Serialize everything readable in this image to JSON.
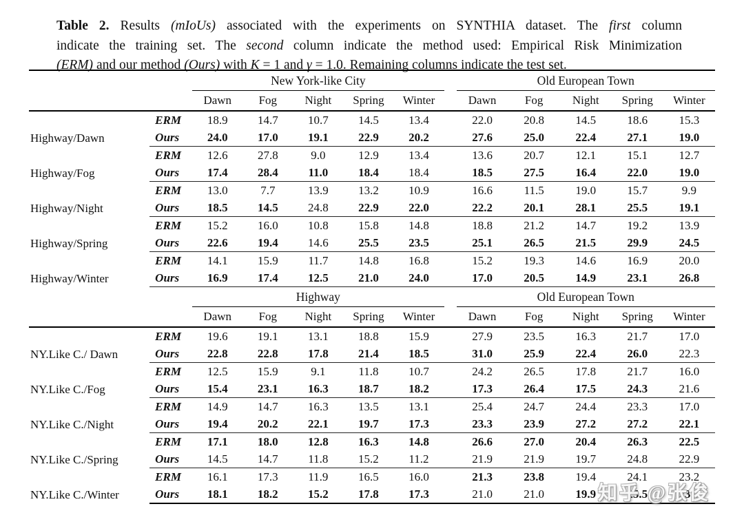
{
  "caption": {
    "lines": [
      [
        {
          "t": "Table 2.",
          "s": "b"
        },
        {
          "t": "  Results ",
          "s": ""
        },
        {
          "t": "(mIoUs)",
          "s": "i"
        },
        {
          "t": " associated with the experiments on SYNTHIA dataset.  The ",
          "s": ""
        },
        {
          "t": "first",
          "s": "i"
        },
        {
          "t": " column",
          "s": ""
        }
      ],
      [
        {
          "t": "indicate the training set. The ",
          "s": ""
        },
        {
          "t": "second",
          "s": "i"
        },
        {
          "t": " column indicate the method used: Empirical Risk Minimization",
          "s": ""
        }
      ],
      [
        {
          "t": "(ERM)",
          "s": "i"
        },
        {
          "t": " and our method ",
          "s": ""
        },
        {
          "t": "(Ours)",
          "s": "i"
        },
        {
          "t": " with ",
          "s": ""
        },
        {
          "t": "K",
          "s": "i"
        },
        {
          "t": " = 1 and ",
          "s": ""
        },
        {
          "t": "γ",
          "s": "i"
        },
        {
          "t": " = 1.0. Remaining columns indicate the test set.",
          "s": ""
        }
      ]
    ]
  },
  "method_labels": [
    "ERM",
    "Ours"
  ],
  "tables": [
    {
      "group_headers": [
        "New York-like City",
        "Old European Town"
      ],
      "columns": [
        "Dawn",
        "Fog",
        "Night",
        "Spring",
        "Winter"
      ],
      "rows": [
        {
          "label": "Highway/Dawn",
          "erm": {
            "v": [
              "18.9",
              "14.7",
              "10.7",
              "14.5",
              "13.4",
              "22.0",
              "20.8",
              "14.5",
              "18.6",
              "15.3"
            ],
            "b": [
              0,
              0,
              0,
              0,
              0,
              0,
              0,
              0,
              0,
              0
            ]
          },
          "ours": {
            "v": [
              "24.0",
              "17.0",
              "19.1",
              "22.9",
              "20.2",
              "27.6",
              "25.0",
              "22.4",
              "27.1",
              "19.0"
            ],
            "b": [
              1,
              1,
              1,
              1,
              1,
              1,
              1,
              1,
              1,
              1
            ]
          }
        },
        {
          "label": "Highway/Fog",
          "erm": {
            "v": [
              "12.6",
              "27.8",
              "9.0",
              "12.9",
              "13.4",
              "13.6",
              "20.7",
              "12.1",
              "15.1",
              "12.7"
            ],
            "b": [
              0,
              0,
              0,
              0,
              0,
              0,
              0,
              0,
              0,
              0
            ]
          },
          "ours": {
            "v": [
              "17.4",
              "28.4",
              "11.0",
              "18.4",
              "18.4",
              "18.5",
              "27.5",
              "16.4",
              "22.0",
              "19.0"
            ],
            "b": [
              1,
              1,
              1,
              1,
              0,
              1,
              1,
              1,
              1,
              1
            ]
          }
        },
        {
          "label": "Highway/Night",
          "erm": {
            "v": [
              "13.0",
              "7.7",
              "13.9",
              "13.2",
              "10.9",
              "16.6",
              "11.5",
              "19.0",
              "15.7",
              "9.9"
            ],
            "b": [
              0,
              0,
              0,
              0,
              0,
              0,
              0,
              0,
              0,
              0
            ]
          },
          "ours": {
            "v": [
              "18.5",
              "14.5",
              "24.8",
              "22.9",
              "22.0",
              "22.2",
              "20.1",
              "28.1",
              "25.5",
              "19.1"
            ],
            "b": [
              1,
              1,
              0,
              1,
              1,
              1,
              1,
              1,
              1,
              1
            ]
          }
        },
        {
          "label": "Highway/Spring",
          "erm": {
            "v": [
              "15.2",
              "16.0",
              "10.8",
              "15.8",
              "14.8",
              "18.8",
              "21.2",
              "14.7",
              "19.2",
              "13.9"
            ],
            "b": [
              0,
              0,
              0,
              0,
              0,
              0,
              0,
              0,
              0,
              0
            ]
          },
          "ours": {
            "v": [
              "22.6",
              "19.4",
              "14.6",
              "25.5",
              "23.5",
              "25.1",
              "26.5",
              "21.5",
              "29.9",
              "24.5"
            ],
            "b": [
              1,
              1,
              0,
              1,
              1,
              1,
              1,
              1,
              1,
              1
            ]
          }
        },
        {
          "label": "Highway/Winter",
          "erm": {
            "v": [
              "14.1",
              "15.9",
              "11.7",
              "14.8",
              "16.8",
              "15.2",
              "19.3",
              "14.6",
              "16.9",
              "20.0"
            ],
            "b": [
              0,
              0,
              0,
              0,
              0,
              0,
              0,
              0,
              0,
              0
            ]
          },
          "ours": {
            "v": [
              "16.9",
              "17.4",
              "12.5",
              "21.0",
              "24.0",
              "17.0",
              "20.5",
              "14.9",
              "23.1",
              "26.8"
            ],
            "b": [
              1,
              1,
              1,
              1,
              1,
              1,
              1,
              1,
              1,
              1
            ]
          }
        }
      ]
    },
    {
      "group_headers": [
        "Highway",
        "Old European Town"
      ],
      "columns": [
        "Dawn",
        "Fog",
        "Night",
        "Spring",
        "Winter"
      ],
      "rows": [
        {
          "label": "NY.Like C./ Dawn",
          "erm": {
            "v": [
              "19.6",
              "19.1",
              "13.1",
              "18.8",
              "15.9",
              "27.9",
              "23.5",
              "16.3",
              "21.7",
              "17.0"
            ],
            "b": [
              0,
              0,
              0,
              0,
              0,
              0,
              0,
              0,
              0,
              0
            ]
          },
          "ours": {
            "v": [
              "22.8",
              "22.8",
              "17.8",
              "21.4",
              "18.5",
              "31.0",
              "25.9",
              "22.4",
              "26.0",
              "22.3"
            ],
            "b": [
              1,
              1,
              1,
              1,
              1,
              1,
              1,
              1,
              1,
              0
            ]
          }
        },
        {
          "label": "NY.Like C./Fog",
          "erm": {
            "v": [
              "12.5",
              "15.9",
              "9.1",
              "11.8",
              "10.7",
              "24.2",
              "26.5",
              "17.8",
              "21.7",
              "16.0"
            ],
            "b": [
              0,
              0,
              0,
              0,
              0,
              0,
              0,
              0,
              0,
              0
            ]
          },
          "ours": {
            "v": [
              "15.4",
              "23.1",
              "16.3",
              "18.7",
              "18.2",
              "17.3",
              "26.4",
              "17.5",
              "24.3",
              "21.6"
            ],
            "b": [
              1,
              1,
              1,
              1,
              1,
              1,
              1,
              1,
              1,
              0
            ]
          }
        },
        {
          "label": "NY.Like C./Night",
          "erm": {
            "v": [
              "14.9",
              "14.7",
              "16.3",
              "13.5",
              "13.1",
              "25.4",
              "24.7",
              "24.4",
              "23.3",
              "17.0"
            ],
            "b": [
              0,
              0,
              0,
              0,
              0,
              0,
              0,
              0,
              0,
              0
            ]
          },
          "ours": {
            "v": [
              "19.4",
              "20.2",
              "22.1",
              "19.7",
              "17.3",
              "23.3",
              "23.9",
              "27.2",
              "27.2",
              "22.1"
            ],
            "b": [
              1,
              1,
              1,
              1,
              1,
              1,
              1,
              1,
              1,
              1
            ]
          }
        },
        {
          "label": "NY.Like C./Spring",
          "erm": {
            "v": [
              "17.1",
              "18.0",
              "12.8",
              "16.3",
              "14.8",
              "26.6",
              "27.0",
              "20.4",
              "26.3",
              "22.5"
            ],
            "b": [
              1,
              1,
              1,
              1,
              1,
              1,
              1,
              1,
              1,
              1
            ]
          },
          "ours": {
            "v": [
              "14.5",
              "14.7",
              "11.8",
              "15.2",
              "11.2",
              "21.9",
              "21.9",
              "19.7",
              "24.8",
              "22.9"
            ],
            "b": [
              0,
              0,
              0,
              0,
              0,
              0,
              0,
              0,
              0,
              0
            ]
          }
        },
        {
          "label": "NY.Like C./Winter",
          "erm": {
            "v": [
              "16.1",
              "17.3",
              "11.9",
              "16.5",
              "16.0",
              "21.3",
              "23.8",
              "19.4",
              "24.1",
              "23.2"
            ],
            "b": [
              0,
              0,
              0,
              0,
              0,
              1,
              1,
              0,
              0,
              0
            ]
          },
          "ours": {
            "v": [
              "18.1",
              "18.2",
              "15.2",
              "17.8",
              "17.3",
              "21.0",
              "21.0",
              "19.9",
              "25.5",
              "23.6"
            ],
            "b": [
              1,
              1,
              1,
              1,
              1,
              0,
              0,
              1,
              1,
              1
            ]
          }
        }
      ]
    }
  ],
  "watermark": {
    "text": "知乎 @张俊"
  }
}
